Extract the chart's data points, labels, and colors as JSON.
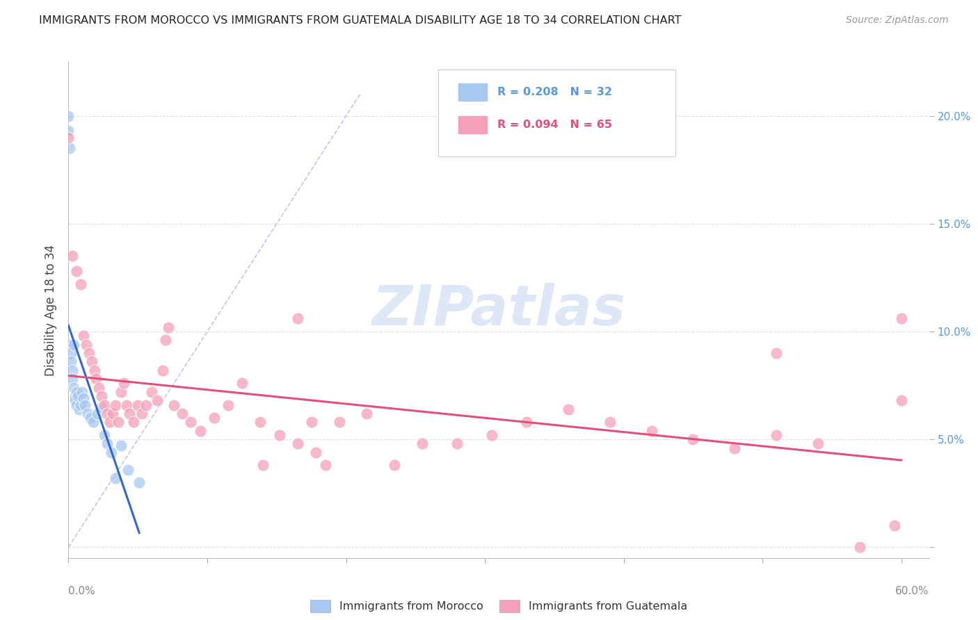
{
  "title": "IMMIGRANTS FROM MOROCCO VS IMMIGRANTS FROM GUATEMALA DISABILITY AGE 18 TO 34 CORRELATION CHART",
  "source": "Source: ZipAtlas.com",
  "ylabel": "Disability Age 18 to 34",
  "xlim": [
    0.0,
    0.62
  ],
  "ylim": [
    -0.005,
    0.225
  ],
  "morocco_R": 0.208,
  "morocco_N": 32,
  "guatemala_R": 0.094,
  "guatemala_N": 65,
  "morocco_color": "#a8c8f0",
  "guatemala_color": "#f4a0b8",
  "morocco_line_color": "#3366cc",
  "guatemala_line_color": "#e0507a",
  "diag_color": "#aabbdd",
  "watermark_color": "#c8d8f0",
  "background_color": "#ffffff",
  "grid_color": "#e0e0e0",
  "title_color": "#222222",
  "source_color": "#999999",
  "ylabel_color": "#444444",
  "ytick_color": "#5599dd",
  "xtick_color": "#888888",
  "legend_text_morocco_color": "#5599dd",
  "legend_text_guatemala_color": "#e0507a",
  "morocco_x": [
    0.0,
    0.0,
    0.001,
    0.001,
    0.002,
    0.002,
    0.003,
    0.003,
    0.004,
    0.004,
    0.005,
    0.005,
    0.006,
    0.006,
    0.007,
    0.008,
    0.009,
    0.01,
    0.011,
    0.012,
    0.014,
    0.016,
    0.018,
    0.021,
    0.024,
    0.026,
    0.028,
    0.031,
    0.034,
    0.038,
    0.043,
    0.051
  ],
  "morocco_y": [
    0.2,
    0.193,
    0.185,
    0.094,
    0.09,
    0.086,
    0.082,
    0.078,
    0.074,
    0.094,
    0.07,
    0.068,
    0.072,
    0.066,
    0.07,
    0.064,
    0.066,
    0.072,
    0.069,
    0.066,
    0.062,
    0.06,
    0.058,
    0.062,
    0.065,
    0.052,
    0.048,
    0.044,
    0.032,
    0.047,
    0.036,
    0.03
  ],
  "guatemala_x": [
    0.0,
    0.003,
    0.006,
    0.009,
    0.011,
    0.013,
    0.015,
    0.017,
    0.019,
    0.02,
    0.022,
    0.024,
    0.026,
    0.028,
    0.03,
    0.032,
    0.034,
    0.036,
    0.038,
    0.04,
    0.042,
    0.044,
    0.047,
    0.05,
    0.053,
    0.056,
    0.06,
    0.064,
    0.068,
    0.072,
    0.076,
    0.082,
    0.088,
    0.095,
    0.105,
    0.115,
    0.125,
    0.138,
    0.152,
    0.165,
    0.178,
    0.195,
    0.215,
    0.235,
    0.255,
    0.28,
    0.305,
    0.33,
    0.36,
    0.39,
    0.42,
    0.45,
    0.48,
    0.51,
    0.54,
    0.57,
    0.595,
    0.6,
    0.165,
    0.175,
    0.185,
    0.07,
    0.14,
    0.6,
    0.51
  ],
  "guatemala_y": [
    0.19,
    0.135,
    0.128,
    0.122,
    0.098,
    0.094,
    0.09,
    0.086,
    0.082,
    0.078,
    0.074,
    0.07,
    0.066,
    0.062,
    0.058,
    0.062,
    0.066,
    0.058,
    0.072,
    0.076,
    0.066,
    0.062,
    0.058,
    0.066,
    0.062,
    0.066,
    0.072,
    0.068,
    0.082,
    0.102,
    0.066,
    0.062,
    0.058,
    0.054,
    0.06,
    0.066,
    0.076,
    0.058,
    0.052,
    0.048,
    0.044,
    0.058,
    0.062,
    0.038,
    0.048,
    0.048,
    0.052,
    0.058,
    0.064,
    0.058,
    0.054,
    0.05,
    0.046,
    0.052,
    0.048,
    0.0,
    0.01,
    0.068,
    0.106,
    0.058,
    0.038,
    0.096,
    0.038,
    0.106,
    0.09
  ]
}
